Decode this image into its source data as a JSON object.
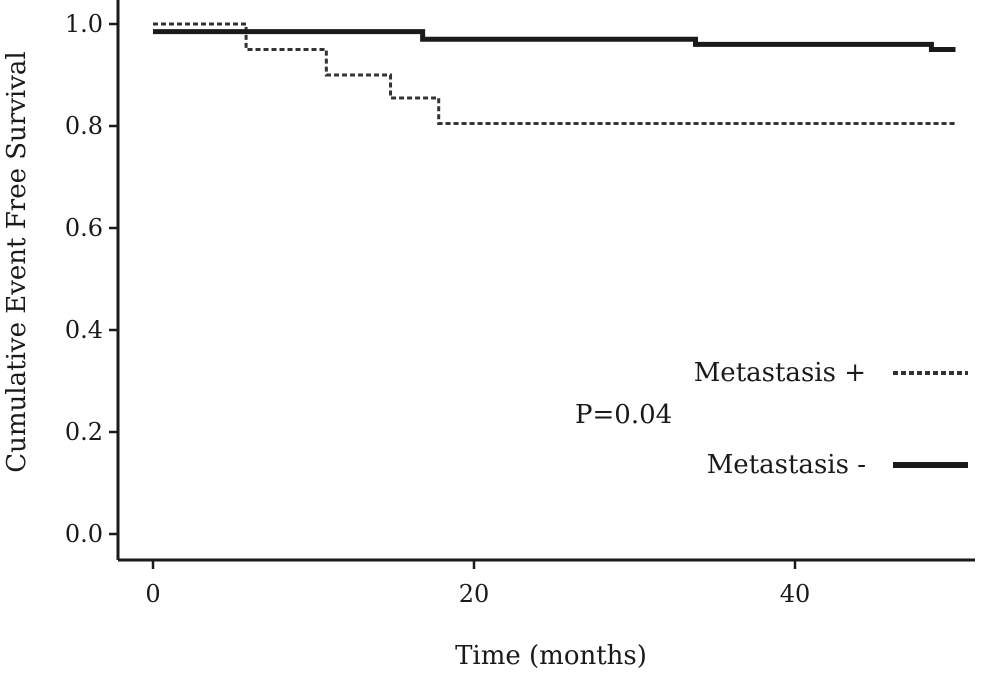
{
  "chart_data": {
    "type": "line",
    "step": true,
    "xlabel": "Time (months)",
    "ylabel": "Cumulative Event Free Survival",
    "xlim": [
      0,
      50
    ],
    "ylim": [
      0.0,
      1.0
    ],
    "x_ticks": [
      0,
      20,
      40
    ],
    "x_tick_labels": [
      "0",
      "20",
      "40"
    ],
    "y_ticks": [
      0.0,
      0.2,
      0.4,
      0.6,
      0.8,
      1.0
    ],
    "y_tick_labels": [
      "0.0",
      "0.2",
      "0.4",
      "0.6",
      "0.8",
      "1.0"
    ],
    "grid": false,
    "legend_position": "right",
    "annotation": "P=0.04",
    "series": [
      {
        "name": "Metastasis +",
        "style": "dotted",
        "color": "#333333",
        "x": [
          0,
          5.8,
          10.8,
          14.8,
          17.8,
          50
        ],
        "y": [
          1.0,
          0.95,
          0.9,
          0.855,
          0.805,
          0.805
        ]
      },
      {
        "name": "Metastasis -",
        "style": "solid",
        "color": "#1a1a1a",
        "x": [
          0,
          16.8,
          33.8,
          48.5,
          50
        ],
        "y": [
          0.985,
          0.97,
          0.96,
          0.95,
          0.95
        ]
      }
    ]
  }
}
